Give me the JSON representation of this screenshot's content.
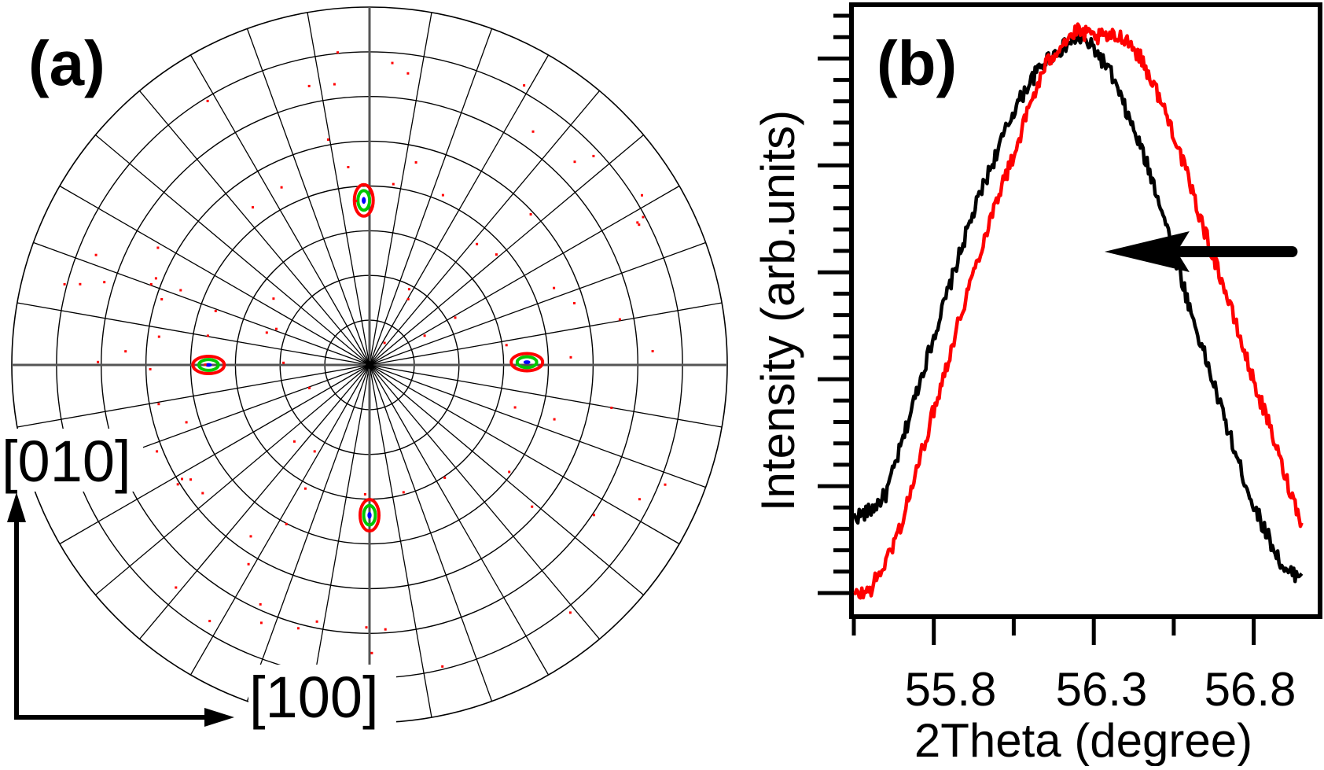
{
  "chart_data": [
    {
      "type": "polar_pole_figure",
      "panel_label": "(a)",
      "direction_labels": {
        "vertical": "[010]",
        "horizontal": "[100]"
      },
      "grid": {
        "rings": 8,
        "spokes": 36
      },
      "pole_spots": [
        {
          "name": "top",
          "phi_deg": 92,
          "psi_fraction": 0.46
        },
        {
          "name": "left",
          "phi_deg": 180,
          "psi_fraction": 0.45
        },
        {
          "name": "right",
          "phi_deg": 1,
          "psi_fraction": 0.44
        },
        {
          "name": "bottom",
          "phi_deg": 270,
          "psi_fraction": 0.42
        }
      ],
      "colors": {
        "spot_outer": "#ff0000",
        "spot_inner": "#00c800",
        "spot_core": "#0000ff"
      }
    },
    {
      "type": "line",
      "panel_label": "(b)",
      "xlabel": "2Theta (degree)",
      "ylabel": "Intensity (arb.units)",
      "xlim": [
        55.55,
        57.0
      ],
      "ylim": [
        0,
        1
      ],
      "xticks": [
        "55.8",
        "56.3",
        "56.8"
      ],
      "xtick_values": [
        55.8,
        56.3,
        56.8
      ],
      "x_minor_ticks": [
        55.55,
        55.8,
        56.05,
        56.3,
        56.55,
        56.8
      ],
      "y_tick_count": 28,
      "series": [
        {
          "name": "black",
          "color": "#000000",
          "x": [
            55.55,
            55.6,
            55.65,
            55.7,
            55.75,
            55.8,
            55.85,
            55.9,
            55.95,
            56.0,
            56.05,
            56.1,
            56.15,
            56.2,
            56.25,
            56.3,
            56.35,
            56.4,
            56.45,
            56.5,
            56.55,
            56.6,
            56.65,
            56.7,
            56.75,
            56.8,
            56.85,
            56.9,
            56.95
          ],
          "values": [
            0.14,
            0.15,
            0.18,
            0.27,
            0.37,
            0.46,
            0.55,
            0.64,
            0.72,
            0.79,
            0.86,
            0.91,
            0.95,
            0.97,
            0.99,
            0.97,
            0.93,
            0.86,
            0.79,
            0.71,
            0.61,
            0.51,
            0.42,
            0.33,
            0.24,
            0.16,
            0.1,
            0.04,
            0.04
          ]
        },
        {
          "name": "red",
          "color": "#ff0000",
          "x": [
            55.55,
            55.6,
            55.65,
            55.7,
            55.75,
            55.8,
            55.85,
            55.9,
            55.95,
            56.0,
            56.05,
            56.1,
            56.15,
            56.2,
            56.25,
            56.3,
            56.35,
            56.4,
            56.45,
            56.5,
            56.55,
            56.6,
            56.65,
            56.7,
            56.75,
            56.8,
            56.85,
            56.9,
            56.95
          ],
          "values": [
            0.0,
            0.01,
            0.06,
            0.13,
            0.23,
            0.33,
            0.43,
            0.53,
            0.62,
            0.71,
            0.78,
            0.87,
            0.94,
            0.98,
            1.0,
            0.99,
            0.99,
            0.99,
            0.95,
            0.89,
            0.82,
            0.73,
            0.64,
            0.56,
            0.47,
            0.38,
            0.3,
            0.21,
            0.13
          ]
        }
      ],
      "annotation": {
        "type": "arrow",
        "direction": "left",
        "x_from": 56.92,
        "x_to": 56.55,
        "y": 0.61
      }
    }
  ]
}
